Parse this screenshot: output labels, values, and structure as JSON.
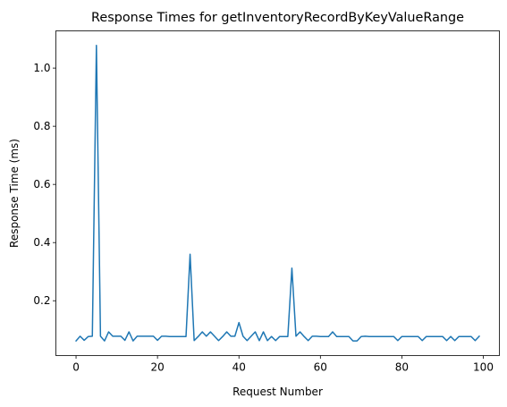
{
  "chart_data": {
    "type": "line",
    "title": "Response Times for getInventoryRecordByKeyValueRange",
    "xlabel": "Request Number",
    "ylabel": "Response Time (ms)",
    "xlim": [
      -4.95,
      103.95
    ],
    "ylim": [
      0.0115,
      1.128
    ],
    "xticks": [
      0,
      20,
      40,
      60,
      80,
      100
    ],
    "yticks": [
      0.2,
      0.4,
      0.6,
      0.8,
      1.0
    ],
    "ytick_labels": [
      "0.2",
      "0.4",
      "0.6",
      "0.8",
      "1.0"
    ],
    "grid": false,
    "legend": "none",
    "series_color": "#1f77b4",
    "series": [
      {
        "x": [
          0,
          1,
          2,
          3,
          4,
          5,
          6,
          7,
          8,
          9,
          10,
          11,
          12,
          13,
          14,
          15,
          16,
          17,
          18,
          19,
          20,
          21,
          22,
          23,
          24,
          25,
          26,
          27,
          28,
          29,
          30,
          31,
          32,
          33,
          34,
          35,
          36,
          37,
          38,
          39,
          40,
          41,
          42,
          43,
          44,
          45,
          46,
          47,
          48,
          49,
          50,
          51,
          52,
          53,
          54,
          55,
          56,
          57,
          58,
          59,
          60,
          61,
          62,
          63,
          64,
          65,
          66,
          67,
          68,
          69,
          70,
          71,
          72,
          73,
          74,
          75,
          76,
          77,
          78,
          79,
          80,
          81,
          82,
          83,
          84,
          85,
          86,
          87,
          88,
          89,
          90,
          91,
          92,
          93,
          94,
          95,
          96,
          97,
          98,
          99
        ],
        "values": [
          0.062,
          0.078,
          0.064,
          0.077,
          0.078,
          1.078,
          0.078,
          0.062,
          0.093,
          0.078,
          0.078,
          0.078,
          0.064,
          0.093,
          0.062,
          0.078,
          0.078,
          0.078,
          0.078,
          0.078,
          0.064,
          0.078,
          0.078,
          0.077,
          0.077,
          0.077,
          0.077,
          0.077,
          0.36,
          0.063,
          0.077,
          0.093,
          0.078,
          0.093,
          0.078,
          0.063,
          0.077,
          0.093,
          0.078,
          0.078,
          0.125,
          0.078,
          0.063,
          0.078,
          0.093,
          0.063,
          0.093,
          0.063,
          0.077,
          0.063,
          0.077,
          0.077,
          0.077,
          0.312,
          0.078,
          0.093,
          0.077,
          0.063,
          0.078,
          0.078,
          0.077,
          0.077,
          0.077,
          0.093,
          0.077,
          0.077,
          0.077,
          0.077,
          0.062,
          0.062,
          0.077,
          0.078,
          0.077,
          0.077,
          0.077,
          0.077,
          0.077,
          0.077,
          0.077,
          0.063,
          0.077,
          0.077,
          0.077,
          0.077,
          0.077,
          0.063,
          0.077,
          0.077,
          0.077,
          0.077,
          0.077,
          0.063,
          0.077,
          0.063,
          0.077,
          0.077,
          0.077,
          0.077,
          0.063,
          0.078
        ]
      }
    ]
  }
}
